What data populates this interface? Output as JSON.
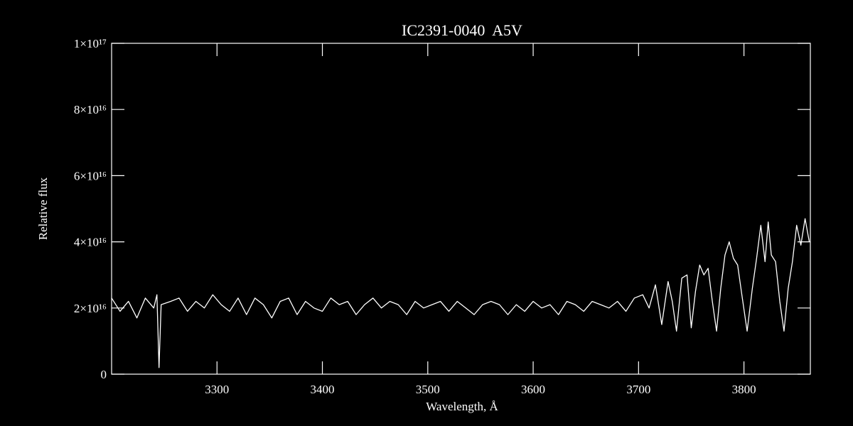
{
  "chart_data": {
    "type": "line",
    "title": "IC2391-0040  A5V",
    "x_label": "Wavelength, Å",
    "y_label": "Relative flux",
    "color": "#ffffff",
    "xlim": [
      3200,
      3863
    ],
    "ylim": [
      0,
      1e+17
    ],
    "xticks": [
      3300,
      3400,
      3500,
      3600,
      3700,
      3800
    ],
    "yticks": [
      0,
      {
        "value": 2e+16,
        "label": "2×10¹⁶"
      },
      {
        "value": 4e+16,
        "label": "4×10¹⁶"
      },
      {
        "value": 6e+16,
        "label": "6×10¹⁶"
      },
      {
        "value": 8e+16,
        "label": "8×10¹⁶"
      },
      {
        "value": 1e+17,
        "label": "1×10¹⁷"
      }
    ],
    "x": [
      3200,
      3208,
      3216,
      3224,
      3232,
      3240,
      3243,
      3245,
      3247,
      3256,
      3264,
      3272,
      3280,
      3288,
      3296,
      3304,
      3312,
      3320,
      3328,
      3336,
      3344,
      3352,
      3360,
      3368,
      3376,
      3384,
      3392,
      3400,
      3408,
      3416,
      3424,
      3432,
      3440,
      3448,
      3456,
      3464,
      3472,
      3480,
      3488,
      3496,
      3504,
      3512,
      3520,
      3528,
      3536,
      3544,
      3552,
      3560,
      3568,
      3576,
      3584,
      3592,
      3600,
      3608,
      3616,
      3624,
      3632,
      3640,
      3648,
      3656,
      3664,
      3672,
      3680,
      3688,
      3696,
      3704,
      3710,
      3716,
      3722,
      3728,
      3732,
      3736,
      3741,
      3746,
      3750,
      3754,
      3758,
      3762,
      3766,
      3770,
      3774,
      3778,
      3782,
      3786,
      3790,
      3794,
      3798,
      3803,
      3808,
      3812,
      3816,
      3820,
      3823,
      3826,
      3830,
      3834,
      3838,
      3842,
      3846,
      3850,
      3854,
      3858,
      3862
    ],
    "values": [
      2.3e+16,
      1.9e+16,
      2.2e+16,
      1.7e+16,
      2.3e+16,
      2e+16,
      2.4e+16,
      2000000000000000.0,
      2.1e+16,
      2.2e+16,
      2.3e+16,
      1.9e+16,
      2.2e+16,
      2e+16,
      2.4e+16,
      2.1e+16,
      1.9e+16,
      2.3e+16,
      1.8e+16,
      2.3e+16,
      2.1e+16,
      1.7e+16,
      2.2e+16,
      2.3e+16,
      1.8e+16,
      2.2e+16,
      2e+16,
      1.9e+16,
      2.3e+16,
      2.1e+16,
      2.2e+16,
      1.8e+16,
      2.1e+16,
      2.3e+16,
      2e+16,
      2.2e+16,
      2.1e+16,
      1.8e+16,
      2.2e+16,
      2e+16,
      2.1e+16,
      2.2e+16,
      1.9e+16,
      2.2e+16,
      2e+16,
      1.8e+16,
      2.1e+16,
      2.2e+16,
      2.1e+16,
      1.8e+16,
      2.1e+16,
      1.9e+16,
      2.2e+16,
      2e+16,
      2.1e+16,
      1.8e+16,
      2.2e+16,
      2.1e+16,
      1.9e+16,
      2.2e+16,
      2.1e+16,
      2e+16,
      2.2e+16,
      1.9e+16,
      2.3e+16,
      2.4e+16,
      2e+16,
      2.7e+16,
      1.5e+16,
      2.8e+16,
      2.2e+16,
      1.3e+16,
      2.9e+16,
      3e+16,
      1.4e+16,
      2.5e+16,
      3.3e+16,
      3e+16,
      3.2e+16,
      2.2e+16,
      1.3e+16,
      2.6e+16,
      3.6e+16,
      4e+16,
      3.5e+16,
      3.3e+16,
      2.4e+16,
      1.3e+16,
      2.6e+16,
      3.5e+16,
      4.5e+16,
      3.4e+16,
      4.6e+16,
      3.6e+16,
      3.4e+16,
      2.2e+16,
      1.3e+16,
      2.6e+16,
      3.4e+16,
      4.5e+16,
      3.9e+16,
      4.7e+16,
      4e+16
    ]
  }
}
